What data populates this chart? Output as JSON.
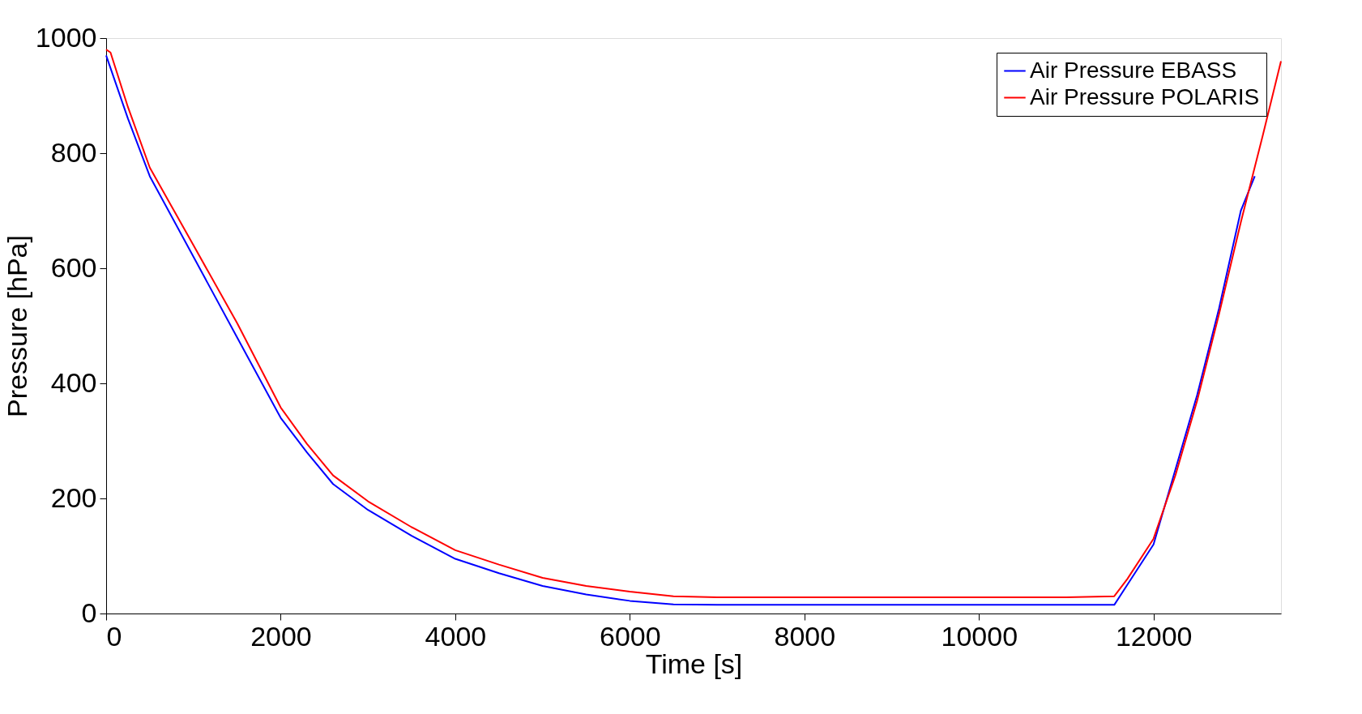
{
  "chart_data": {
    "type": "line",
    "xlabel": "Time [s]",
    "ylabel": "Pressure [hPa]",
    "xlim": [
      0,
      13460
    ],
    "ylim": [
      0,
      1000
    ],
    "xticks": [
      0,
      2000,
      4000,
      6000,
      8000,
      10000,
      12000
    ],
    "yticks": [
      0,
      200,
      400,
      600,
      800,
      1000
    ],
    "legend": "top right",
    "grid": false,
    "series": [
      {
        "name": "Air Pressure EBASS",
        "color": "#0000ff",
        "x": [
          0,
          250,
          500,
          1000,
          1500,
          2000,
          2300,
          2600,
          3000,
          3500,
          4000,
          4500,
          5000,
          5500,
          6000,
          6500,
          7000,
          8000,
          9000,
          10000,
          11000,
          11550,
          11700,
          12000,
          12250,
          12500,
          12750,
          13000,
          13160
        ],
        "values": [
          970,
          860,
          760,
          620,
          480,
          340,
          280,
          225,
          180,
          135,
          95,
          70,
          48,
          33,
          22,
          16,
          15,
          15,
          15,
          15,
          15,
          15,
          50,
          120,
          250,
          380,
          530,
          700,
          760
        ]
      },
      {
        "name": "Air Pressure POLARIS",
        "color": "#ff0000",
        "x": [
          0,
          50,
          250,
          500,
          1000,
          1500,
          2000,
          2300,
          2600,
          3000,
          3500,
          4000,
          4500,
          5000,
          5500,
          6000,
          6500,
          7000,
          8000,
          9000,
          10000,
          11000,
          11550,
          11700,
          12000,
          12250,
          12500,
          12750,
          13000,
          13250,
          13460
        ],
        "values": [
          980,
          975,
          880,
          775,
          640,
          505,
          358,
          295,
          240,
          195,
          150,
          110,
          85,
          62,
          48,
          38,
          30,
          28,
          28,
          28,
          28,
          28,
          30,
          60,
          130,
          240,
          370,
          520,
          680,
          830,
          960
        ]
      }
    ]
  }
}
